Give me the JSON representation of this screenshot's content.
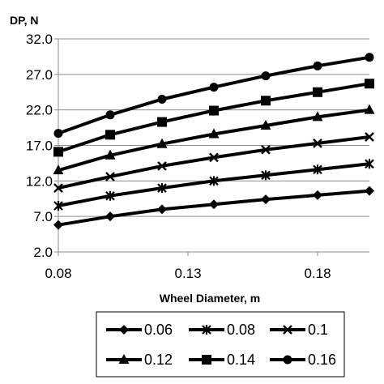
{
  "chart_data": {
    "type": "line",
    "ylabel": "DP, N",
    "xlabel": "Wheel Diameter, m",
    "xlim": [
      0.08,
      0.2
    ],
    "ylim": [
      2.0,
      32.0
    ],
    "x_ticks": [
      "0.08",
      "0.13",
      "0.18"
    ],
    "y_ticks": [
      "2.0",
      "7.0",
      "12.0",
      "17.0",
      "22.0",
      "27.0",
      "32.0"
    ],
    "grid": "horizontal",
    "legend_position": "bottom",
    "x": [
      0.08,
      0.1,
      0.12,
      0.14,
      0.16,
      0.18,
      0.2
    ],
    "series": [
      {
        "name": "0.06",
        "marker": "diamond",
        "values": [
          5.8,
          7.0,
          8.0,
          8.7,
          9.4,
          10.0,
          10.6
        ]
      },
      {
        "name": "0.08",
        "marker": "asterisk",
        "values": [
          8.5,
          9.9,
          11.0,
          12.0,
          12.8,
          13.6,
          14.4
        ]
      },
      {
        "name": "0.1",
        "marker": "x",
        "values": [
          11.0,
          12.6,
          14.1,
          15.3,
          16.4,
          17.3,
          18.2
        ]
      },
      {
        "name": "0.12",
        "marker": "triangle",
        "values": [
          13.5,
          15.6,
          17.2,
          18.6,
          19.8,
          21.0,
          22.0
        ]
      },
      {
        "name": "0.14",
        "marker": "square",
        "values": [
          16.1,
          18.5,
          20.3,
          21.9,
          23.3,
          24.5,
          25.7
        ]
      },
      {
        "name": "0.16",
        "marker": "circle",
        "values": [
          18.7,
          21.3,
          23.5,
          25.2,
          26.8,
          28.2,
          29.4
        ]
      }
    ]
  }
}
